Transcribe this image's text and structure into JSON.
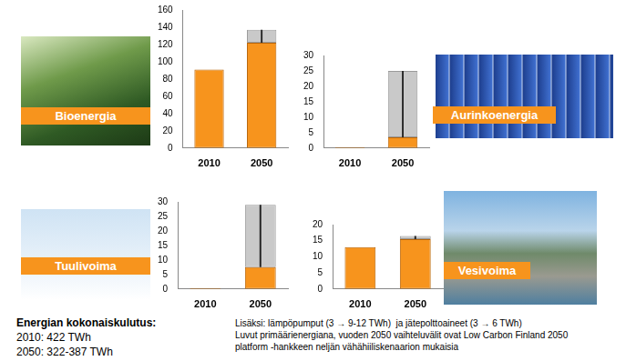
{
  "chart_data": [
    {
      "type": "bar",
      "title": "Bioenergia",
      "categories": [
        "2010",
        "2050"
      ],
      "values": [
        91,
        122
      ],
      "ranges": [
        null,
        [
          122,
          137
        ]
      ],
      "color": "#f7941d",
      "ylim": [
        0,
        160
      ],
      "yticks": [
        0,
        20,
        40,
        60,
        80,
        100,
        120,
        140,
        160
      ],
      "grid": false
    },
    {
      "type": "bar",
      "title": "Aurinkoenergia",
      "categories": [
        "2010",
        "2050"
      ],
      "values": [
        0.2,
        3.5
      ],
      "ranges": [
        null,
        [
          3.5,
          25
        ]
      ],
      "color": "#f7941d",
      "ylim": [
        0,
        30
      ],
      "yticks": [
        0,
        5,
        10,
        15,
        20,
        25,
        30
      ],
      "grid": false
    },
    {
      "type": "bar",
      "title": "Tuulivoima",
      "categories": [
        "2010",
        "2050"
      ],
      "values": [
        0.3,
        7.5
      ],
      "ranges": [
        null,
        [
          7.5,
          29
        ]
      ],
      "color": "#f7941d",
      "ylim": [
        0,
        30
      ],
      "yticks": [
        0,
        5,
        10,
        15,
        20,
        25,
        30
      ],
      "grid": false
    },
    {
      "type": "bar",
      "title": "Vesivoima",
      "categories": [
        "2010",
        "2050"
      ],
      "values": [
        13,
        15.5
      ],
      "ranges": [
        null,
        [
          15.5,
          16.5
        ]
      ],
      "color": "#f7941d",
      "ylim": [
        0,
        20
      ],
      "yticks": [
        0,
        5,
        10,
        15,
        20
      ],
      "grid": false
    }
  ],
  "footer": {
    "heading": "Energian kokonaiskulutus:",
    "lines": [
      "2010: 422 TWh",
      "2050: 322-387 TWh"
    ],
    "notes": [
      "Lisäksi: lämpöpumput (3 → 9-12 TWh)  ja jätepolttoaineet (3 → 6 TWh)",
      "Luvut primäärienergiana, vuoden 2050 vaihteluvälit ovat Low Carbon Finland 2050",
      "platform -hankkeen neljän vähähiiliskenaarion mukaisia"
    ]
  }
}
